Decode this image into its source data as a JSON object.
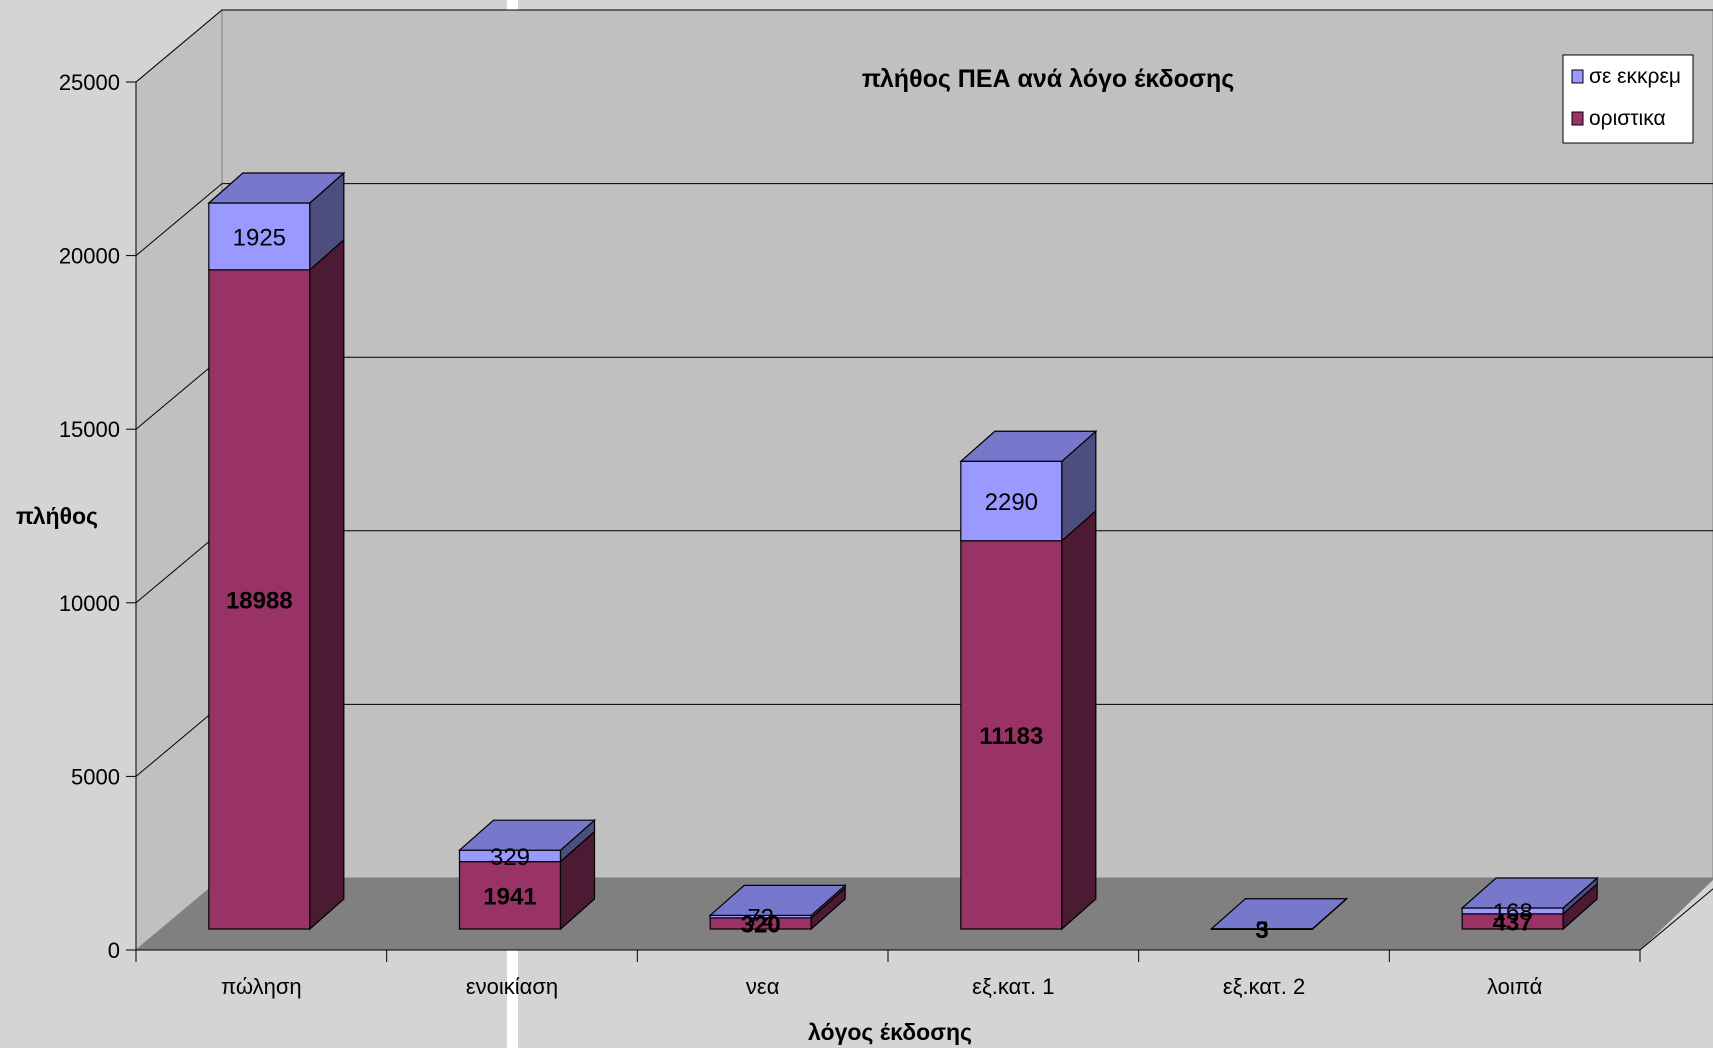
{
  "chart_data": {
    "type": "bar",
    "stacked": true,
    "three_d": true,
    "title": "πλήθος ΠΕΑ ανά λόγο έκδοσης",
    "xlabel": "λόγος έκδοσης",
    "ylabel": "πλήθος",
    "ylim": [
      0,
      25000
    ],
    "yticks": [
      "0",
      "5000",
      "10000",
      "15000",
      "20000",
      "25000"
    ],
    "categories": [
      "πώληση",
      "ενοικίαση",
      "νεα",
      "εξ.κατ. 1",
      "εξ.κατ. 2",
      "λοιπά"
    ],
    "series": [
      {
        "name": "οριστικα",
        "values": [
          18988,
          1941,
          320,
          11183,
          3,
          437
        ],
        "color": "#993366",
        "side_color": "#4d1a33"
      },
      {
        "name": "σε εκκρεμ",
        "values": [
          1925,
          329,
          72,
          2290,
          5,
          168
        ],
        "color": "#9999ff",
        "side_color": "#4d4d80",
        "top_color": "#7777cc"
      }
    ],
    "legend": {
      "position": "top-right",
      "order": [
        "σε εκκρεμ",
        "οριστικα"
      ]
    },
    "grid": true,
    "colors": {
      "back_wall": "#c0c0c0",
      "side_wall": "#c0c0c0",
      "floor": "#808080",
      "gridline": "#000000"
    }
  }
}
